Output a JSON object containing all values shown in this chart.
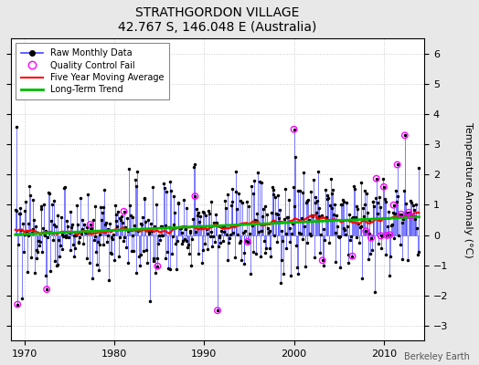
{
  "title": "STRATHGORDON VILLAGE",
  "subtitle": "42.767 S, 146.048 E (Australia)",
  "ylabel": "Temperature Anomaly (°C)",
  "credit": "Berkeley Earth",
  "xlim": [
    1968.5,
    2014.5
  ],
  "ylim": [
    -3.5,
    6.5
  ],
  "yticks": [
    -3,
    -2,
    -1,
    0,
    1,
    2,
    3,
    4,
    5,
    6
  ],
  "xticks": [
    1970,
    1980,
    1990,
    2000,
    2010
  ],
  "bg_color": "#e8e8e8",
  "plot_bg_color": "#ffffff",
  "grid_color": "#cccccc",
  "line_color": "#4444ff",
  "ma_color": "#ff0000",
  "trend_color": "#00bb00",
  "qc_color": "#ff00ff",
  "seed": 137
}
